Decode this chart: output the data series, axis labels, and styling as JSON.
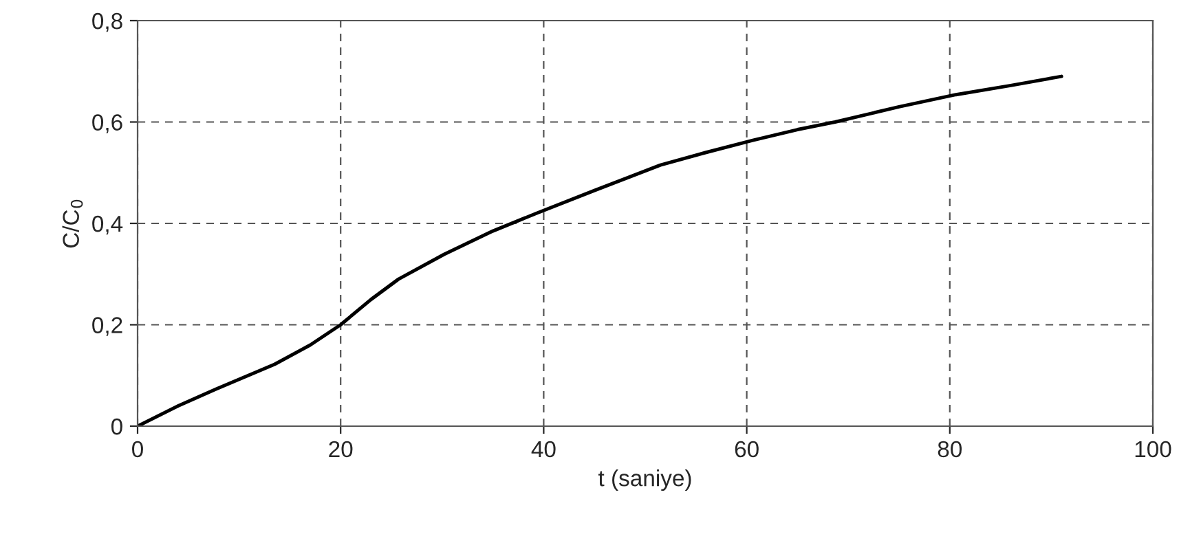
{
  "chart_data": {
    "type": "line",
    "xlabel": "t (saniye)",
    "ylabel": "C/C$_{0}$",
    "series": [
      {
        "color": "#000000",
        "x": [
          0,
          4,
          7.7,
          13.5,
          17,
          20,
          23,
          25.7,
          30.2,
          35,
          39.3,
          45,
          51.5,
          56,
          60.6,
          65,
          68.7,
          75,
          80.6,
          86,
          91
        ],
        "values": [
          0,
          0.04,
          0.073,
          0.122,
          0.16,
          0.2,
          0.25,
          0.29,
          0.339,
          0.385,
          0.42,
          0.465,
          0.515,
          0.54,
          0.564,
          0.585,
          0.6,
          0.63,
          0.654,
          0.672,
          0.69
        ]
      }
    ],
    "xlim": [
      0,
      100
    ],
    "xticks": [
      0,
      20,
      40,
      60,
      80,
      100
    ],
    "ylim": [
      0,
      0.8
    ],
    "yticks": [
      {
        "value": 0,
        "label": "0"
      },
      {
        "value": 0.2,
        "label": "0,2"
      },
      {
        "value": 0.4,
        "label": "0,4"
      },
      {
        "value": 0.6,
        "label": "0,6"
      },
      {
        "value": 0.8,
        "label": "0,8"
      }
    ],
    "grid": true,
    "line_style": "solid",
    "marker": "none"
  }
}
